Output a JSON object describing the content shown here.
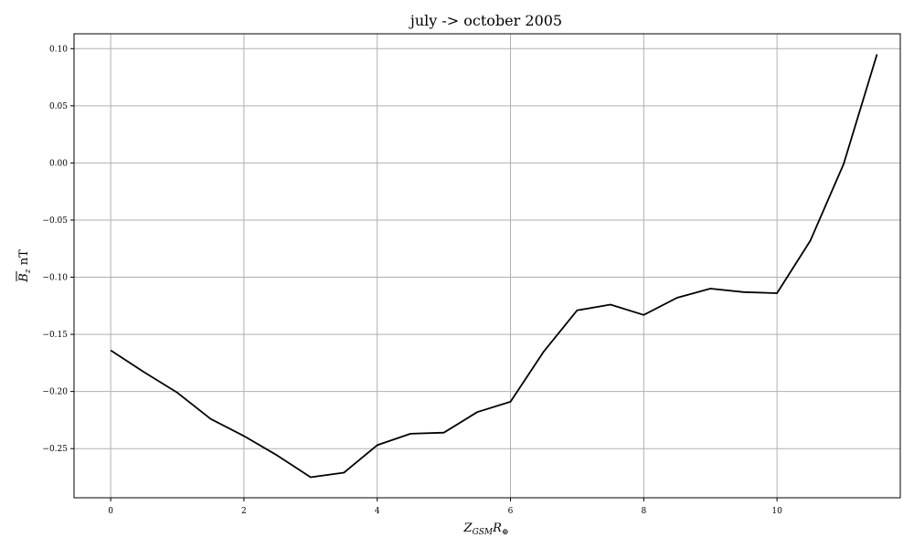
{
  "chart_data": {
    "type": "line",
    "title": "july -> october 2005",
    "xlabel": "Z_GSM R_⊕",
    "ylabel": "B_z nT",
    "xlim": [
      -0.55,
      11.85
    ],
    "ylim": [
      -0.293,
      0.113
    ],
    "grid": true,
    "x_ticks": [
      0,
      2,
      4,
      6,
      8,
      10
    ],
    "x_tick_labels": [
      "0",
      "2",
      "4",
      "6",
      "8",
      "10"
    ],
    "y_ticks": [
      0.1,
      0.05,
      0.0,
      -0.05,
      -0.1,
      -0.15,
      -0.2,
      -0.25
    ],
    "y_tick_labels": [
      "0.10",
      "0.05",
      "0.00",
      "−0.05",
      "−0.10",
      "−0.15",
      "−0.20",
      "−0.25"
    ],
    "series": [
      {
        "color": "#000000",
        "x": [
          0,
          0.5,
          1.0,
          1.5,
          2.0,
          2.5,
          3.0,
          3.5,
          4.0,
          4.5,
          5.0,
          5.5,
          6.0,
          6.5,
          7.0,
          7.5,
          8.0,
          8.5,
          9.0,
          9.5,
          10.0,
          10.5,
          11.0,
          11.5
        ],
        "y": [
          -0.164,
          -0.183,
          -0.201,
          -0.224,
          -0.239,
          -0.256,
          -0.275,
          -0.271,
          -0.247,
          -0.237,
          -0.236,
          -0.218,
          -0.209,
          -0.165,
          -0.129,
          -0.124,
          -0.133,
          -0.118,
          -0.11,
          -0.113,
          -0.114,
          -0.068,
          -0.001,
          0.095
        ]
      }
    ]
  }
}
